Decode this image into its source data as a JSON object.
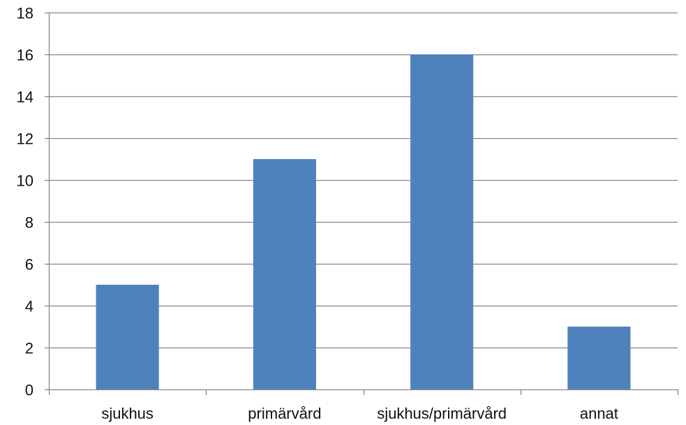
{
  "chart_data": {
    "type": "bar",
    "categories": [
      "sjukhus",
      "primärvård",
      "sjukhus/primärvård",
      "annat"
    ],
    "values": [
      5,
      11,
      16,
      3
    ],
    "ylim": [
      0,
      18
    ],
    "yticks": [
      "0",
      "2",
      "4",
      "6",
      "8",
      "10",
      "12",
      "14",
      "16",
      "18"
    ],
    "grid": true,
    "legend": "none",
    "bar_color": "#4F81BD",
    "grid_color": "#868686",
    "axis_color": "#868686"
  }
}
